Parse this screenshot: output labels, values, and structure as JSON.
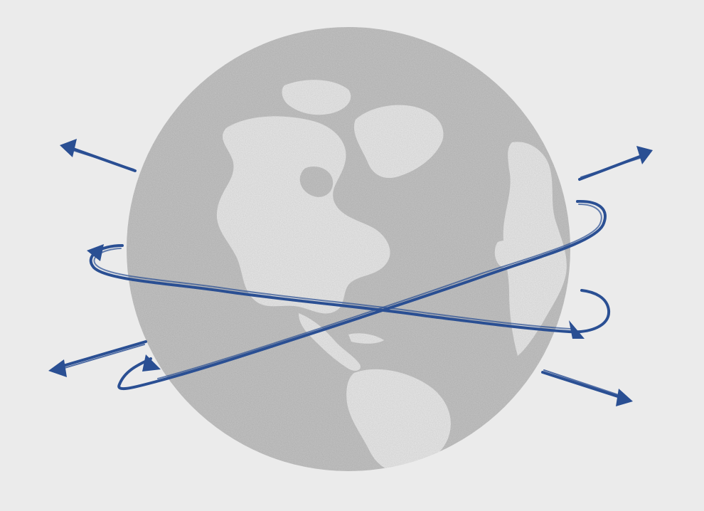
{
  "colors": {
    "background": "#ebebeb",
    "ocean": "#c4c4c4",
    "ocean_dark": "#b6b6b6",
    "land": "#e9e9e9",
    "route": "#2a4f93"
  },
  "icons": {
    "globe": "globe-icon",
    "arrow": "arrowhead-icon"
  }
}
